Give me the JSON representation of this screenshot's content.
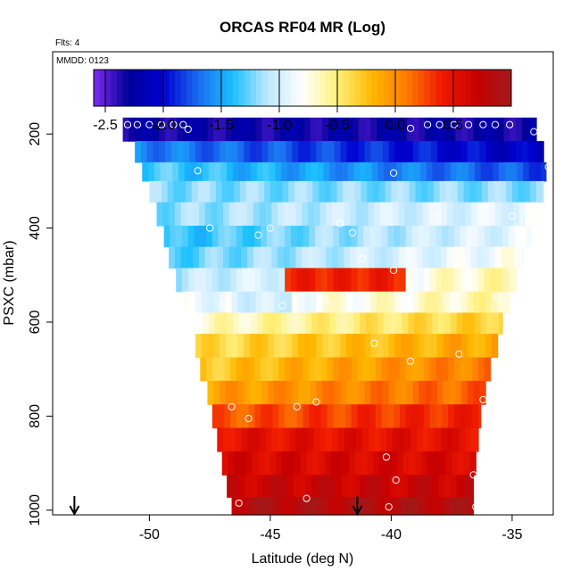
{
  "chart_data": {
    "type": "heatmap",
    "title": "ORCAS RF04 MR (Log)",
    "note_flights": "Flts: 4",
    "note_date": "MMDD: 0123",
    "xlabel": "Latitude (deg N)",
    "ylabel": "PSXC (mbar)",
    "xlim": [
      -54.0,
      -33.3
    ],
    "ylim": [
      1010,
      25
    ],
    "x_ticks": [
      -50,
      -45,
      -40,
      -35
    ],
    "x_tick_labels": [
      "-50",
      "-45",
      "-40",
      "-35"
    ],
    "y_ticks": [
      200,
      400,
      600,
      800,
      1000
    ],
    "y_tick_labels": [
      "200",
      "400",
      "600",
      "800",
      "1000"
    ],
    "colorbar": {
      "min": -2.6,
      "max": 1.0,
      "ticks": [
        -2.5,
        -2.0,
        -1.5,
        -1.0,
        -0.5,
        0.0,
        0.5
      ],
      "tick_labels": [
        "-2.5",
        "-2.0",
        "-1.5",
        "-1.0",
        "-0.5",
        "0.0",
        "0.5"
      ],
      "stops": [
        "#7f2cf0",
        "#00009a",
        "#0000d0",
        "#1a6cf0",
        "#1ac0ff",
        "#bfe8ff",
        "#ffffff",
        "#fff07a",
        "#ffb800",
        "#ff7a00",
        "#f01a00",
        "#c80000",
        "#a01a1a"
      ]
    },
    "layers": [
      {
        "p": 190,
        "lat_min": -51.1,
        "lat_max": -34.0,
        "v_start": -2.3,
        "v_end": -2.3
      },
      {
        "p": 240,
        "lat_min": -50.6,
        "lat_max": -33.7,
        "v_start": -1.6,
        "v_end": -2.1
      },
      {
        "p": 280,
        "lat_min": -50.3,
        "lat_max": -33.6,
        "v_start": -1.3,
        "v_end": -1.8
      },
      {
        "p": 320,
        "lat_min": -50.0,
        "lat_max": -33.7,
        "v_start": -1.2,
        "v_end": -1.2
      },
      {
        "p": 370,
        "lat_min": -49.7,
        "lat_max": -34.0,
        "v_start": -1.2,
        "v_end": -0.9
      },
      {
        "p": 420,
        "lat_min": -49.4,
        "lat_max": -34.2,
        "v_start": -1.4,
        "v_end": -0.9
      },
      {
        "p": 460,
        "lat_min": -49.2,
        "lat_max": -34.5,
        "v_start": -1.3,
        "v_end": -0.8
      },
      {
        "p": 510,
        "lat_min": -48.9,
        "lat_max": -34.8,
        "v_start": -1.1,
        "v_end": -0.6
      },
      {
        "p": 560,
        "lat_min": -48.6,
        "lat_max": -35.1,
        "v_start": -0.9,
        "v_end": -0.6
      },
      {
        "p": 600,
        "lat_min": -48.3,
        "lat_max": -35.4,
        "v_start": -0.7,
        "v_end": -0.3
      },
      {
        "p": 650,
        "lat_min": -48.1,
        "lat_max": -35.6,
        "v_start": -0.4,
        "v_end": -0.1
      },
      {
        "p": 700,
        "lat_min": -47.9,
        "lat_max": -35.9,
        "v_start": -0.3,
        "v_end": 0.1
      },
      {
        "p": 750,
        "lat_min": -47.6,
        "lat_max": -36.1,
        "v_start": -0.1,
        "v_end": 0.2
      },
      {
        "p": 800,
        "lat_min": -47.4,
        "lat_max": -36.3,
        "v_start": 0.2,
        "v_end": 0.4
      },
      {
        "p": 850,
        "lat_min": -47.2,
        "lat_max": -36.4,
        "v_start": 0.5,
        "v_end": 0.5
      },
      {
        "p": 900,
        "lat_min": -47.0,
        "lat_max": -36.5,
        "v_start": 0.6,
        "v_end": 0.6
      },
      {
        "p": 950,
        "lat_min": -46.8,
        "lat_max": -36.6,
        "v_start": 0.7,
        "v_end": 0.7
      },
      {
        "p": 995,
        "lat_min": -46.6,
        "lat_max": -36.6,
        "v_start": 0.85,
        "v_end": 0.85
      }
    ],
    "anomalies": [
      {
        "p": 400,
        "lat_from": -43.6,
        "lat_to": -42.0,
        "v": 0.0
      },
      {
        "p": 510,
        "lat_from": -44.5,
        "lat_to": -39.5,
        "v": 0.4
      },
      {
        "p": 560,
        "lat_from": -46.5,
        "lat_to": -44.0,
        "v": -1.0
      },
      {
        "p": 400,
        "lat_from": -42.0,
        "lat_to": -39.0,
        "v": -1.2
      }
    ],
    "observations": [
      {
        "lat": -50.9,
        "p": 180
      },
      {
        "lat": -50.5,
        "p": 180
      },
      {
        "lat": -50.0,
        "p": 180
      },
      {
        "lat": -49.5,
        "p": 180
      },
      {
        "lat": -49.0,
        "p": 180
      },
      {
        "lat": -48.6,
        "p": 180
      },
      {
        "lat": -48.4,
        "p": 190
      },
      {
        "lat": -39.2,
        "p": 188
      },
      {
        "lat": -38.5,
        "p": 180
      },
      {
        "lat": -38.0,
        "p": 180
      },
      {
        "lat": -37.4,
        "p": 180
      },
      {
        "lat": -36.8,
        "p": 180
      },
      {
        "lat": -36.2,
        "p": 180
      },
      {
        "lat": -35.7,
        "p": 180
      },
      {
        "lat": -35.1,
        "p": 180
      },
      {
        "lat": -34.1,
        "p": 195
      },
      {
        "lat": -33.5,
        "p": 270
      },
      {
        "lat": -48.0,
        "p": 278
      },
      {
        "lat": -39.9,
        "p": 283
      },
      {
        "lat": -38.1,
        "p": 375
      },
      {
        "lat": -35.0,
        "p": 375
      },
      {
        "lat": -34.0,
        "p": 375
      },
      {
        "lat": -47.5,
        "p": 400
      },
      {
        "lat": -45.0,
        "p": 400
      },
      {
        "lat": -45.5,
        "p": 415
      },
      {
        "lat": -42.1,
        "p": 390
      },
      {
        "lat": -41.6,
        "p": 410
      },
      {
        "lat": -41.2,
        "p": 465
      },
      {
        "lat": -39.9,
        "p": 490
      },
      {
        "lat": -47.0,
        "p": 565
      },
      {
        "lat": -44.5,
        "p": 565
      },
      {
        "lat": -42.7,
        "p": 555
      },
      {
        "lat": -35.6,
        "p": 548
      },
      {
        "lat": -40.7,
        "p": 645
      },
      {
        "lat": -39.2,
        "p": 683
      },
      {
        "lat": -37.2,
        "p": 668
      },
      {
        "lat": -46.6,
        "p": 780
      },
      {
        "lat": -45.9,
        "p": 805
      },
      {
        "lat": -43.9,
        "p": 780
      },
      {
        "lat": -43.1,
        "p": 770
      },
      {
        "lat": -36.2,
        "p": 765
      },
      {
        "lat": -40.2,
        "p": 887
      },
      {
        "lat": -36.6,
        "p": 925
      },
      {
        "lat": -39.8,
        "p": 936
      },
      {
        "lat": -46.3,
        "p": 985
      },
      {
        "lat": -43.5,
        "p": 975
      },
      {
        "lat": -40.1,
        "p": 993
      },
      {
        "lat": -36.5,
        "p": 993
      }
    ],
    "arrows": [
      {
        "lat": -53.1
      },
      {
        "lat": -41.4
      }
    ]
  }
}
